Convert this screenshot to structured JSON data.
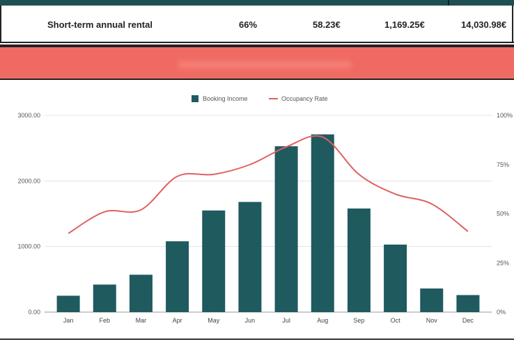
{
  "summary_row": {
    "label": "Short-term annual rental",
    "occupancy": "66%",
    "daily_rate": "58.23€",
    "monthly_income": "1,169.25€",
    "annual_income": "14,030.98€"
  },
  "colors": {
    "bar": "#1f5a5f",
    "line": "#e06060",
    "banner": "#ef6a62",
    "header_band": "#1f4f55"
  },
  "chart_data": {
    "type": "bar",
    "categories": [
      "Jan",
      "Feb",
      "Mar",
      "Apr",
      "May",
      "Jun",
      "Jul",
      "Aug",
      "Sep",
      "Oct",
      "Nov",
      "Dec"
    ],
    "series": [
      {
        "name": "Booking Income",
        "type": "bar",
        "axis": "left",
        "values": [
          250,
          420,
          570,
          1080,
          1550,
          1680,
          2530,
          2710,
          1580,
          1030,
          360,
          260
        ]
      },
      {
        "name": "Occupancy Rate",
        "type": "line",
        "axis": "right",
        "values": [
          0.4,
          0.51,
          0.52,
          0.69,
          0.7,
          0.75,
          0.84,
          0.89,
          0.7,
          0.6,
          0.55,
          0.41
        ]
      }
    ],
    "y_left": {
      "min": 0,
      "max": 3000,
      "ticks": [
        0,
        1000,
        2000,
        3000
      ],
      "tick_labels": [
        "0.00",
        "1000.00",
        "2000.00",
        "3000.00"
      ]
    },
    "y_right": {
      "min": 0,
      "max": 1,
      "ticks": [
        0,
        0.25,
        0.5,
        0.75,
        1
      ],
      "tick_labels": [
        "0%",
        "25%",
        "50%",
        "75%",
        "100%"
      ]
    },
    "legend_position": "top",
    "grid": true
  }
}
